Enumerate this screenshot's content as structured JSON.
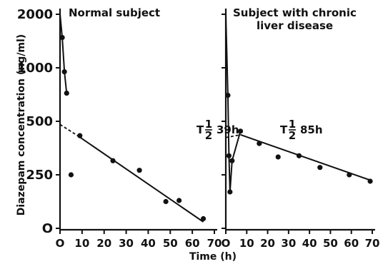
{
  "figure": {
    "ylabel": "Diazepam concentration (ng/ml)",
    "xlabel": "Time (h)"
  },
  "chart_data": [
    {
      "type": "line",
      "title": "Normal subject",
      "annotation": {
        "prefix": "T",
        "fraction_num": "1",
        "fraction_den": "2",
        "value": "39h"
      },
      "xlabel": "Time (h)",
      "ylabel": "Diazepam concentration (ng/ml)",
      "x_ticks": [
        0,
        10,
        20,
        30,
        40,
        50,
        60,
        70
      ],
      "x_tick_labels": [
        "O",
        "10",
        "20",
        "30",
        "40",
        "50",
        "60",
        "70"
      ],
      "xlim": [
        0,
        70
      ],
      "y_ticks": [
        0,
        250,
        500,
        1000,
        2000
      ],
      "y_tick_labels": [
        "O",
        "250",
        "500",
        "1000",
        "2000"
      ],
      "yscale": "log (tick-labelled)",
      "series": [
        {
          "points": [
            {
              "x": 1,
              "y": 1480
            },
            {
              "x": 2,
              "y": 950
            },
            {
              "x": 3,
              "y": 720
            },
            {
              "x": 5,
              "y": 250
            },
            {
              "x": 9,
              "y": 415
            },
            {
              "x": 24,
              "y": 300
            },
            {
              "x": 36,
              "y": 265
            },
            {
              "x": 48,
              "y": 125
            },
            {
              "x": 54,
              "y": 130
            },
            {
              "x": 65,
              "y": 45
            }
          ]
        }
      ],
      "fit_line": {
        "x": [
          8,
          65
        ],
        "y": [
          415,
          30
        ]
      },
      "extrapolation": {
        "x": [
          0,
          8
        ],
        "y": [
          480,
          415
        ]
      },
      "grid": false
    },
    {
      "type": "line",
      "title": "Subject with chronic liver disease",
      "title_lines": [
        "Subject with chronic",
        "liver disease"
      ],
      "annotation": {
        "prefix": "T",
        "fraction_num": "1",
        "fraction_den": "2",
        "value": "85h"
      },
      "xlabel": "Time (h)",
      "x_ticks": [
        0,
        10,
        20,
        30,
        40,
        50,
        60,
        70
      ],
      "x_tick_labels": [
        "O",
        "10",
        "20",
        "30",
        "40",
        "50",
        "60",
        "70"
      ],
      "xlim": [
        0,
        70
      ],
      "y_ticks": [
        0,
        250,
        500,
        1000,
        2000
      ],
      "yscale": "log (tick-labelled)",
      "series": [
        {
          "points": [
            {
              "x": 1,
              "y": 700
            },
            {
              "x": 1.5,
              "y": 320
            },
            {
              "x": 2,
              "y": 170
            },
            {
              "x": 3,
              "y": 300
            },
            {
              "x": 7,
              "y": 440
            },
            {
              "x": 16,
              "y": 375
            },
            {
              "x": 25,
              "y": 315
            },
            {
              "x": 35,
              "y": 320
            },
            {
              "x": 45,
              "y": 275
            },
            {
              "x": 59,
              "y": 250
            },
            {
              "x": 69,
              "y": 220
            }
          ]
        }
      ],
      "fit_line": {
        "x": [
          7,
          69
        ],
        "y": [
          420,
          225
        ]
      },
      "extrapolation": {
        "x": [
          0,
          7
        ],
        "y": [
          405,
          420
        ]
      },
      "grid": false
    }
  ]
}
